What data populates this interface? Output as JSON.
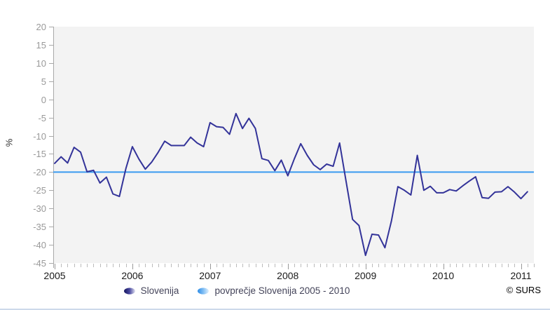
{
  "chart_data": {
    "type": "line",
    "ylabel": "%",
    "ylim": [
      -45,
      20
    ],
    "y_ticks": [
      20,
      15,
      10,
      5,
      0,
      -5,
      -10,
      -15,
      -20,
      -25,
      -30,
      -35,
      -40,
      -45
    ],
    "x_tick_labels": [
      "2005",
      "2006",
      "2007",
      "2008",
      "2009",
      "2010",
      "2011"
    ],
    "x_frequency": "monthly",
    "grid": false,
    "legend_position": "bottom",
    "plot_bg_color": "#f3f3f3",
    "axis_color": "#a8a8a8",
    "tick_label_color": "#999999",
    "year_label_color": "#1a1a1a",
    "series": [
      {
        "name": "Slovenija",
        "color": "#333399",
        "values": [
          -17.6,
          -15.8,
          -17.5,
          -13.2,
          -14.5,
          -19.9,
          -19.5,
          -23.0,
          -21.4,
          -26.0,
          -26.7,
          -19.0,
          -13.0,
          -16.4,
          -19.2,
          -17.2,
          -14.5,
          -11.5,
          -12.7,
          -12.7,
          -12.7,
          -10.4,
          -12.0,
          -13.0,
          -6.4,
          -7.5,
          -7.7,
          -9.6,
          -3.9,
          -8.0,
          -5.2,
          -8.0,
          -16.3,
          -16.8,
          -19.6,
          -16.7,
          -21.0,
          -16.4,
          -12.2,
          -15.4,
          -18.0,
          -19.3,
          -17.8,
          -18.4,
          -12.0,
          -22.5,
          -33.0,
          -34.7,
          -42.9,
          -37.1,
          -37.3,
          -40.8,
          -33.5,
          -24.0,
          -25.0,
          -26.3,
          -15.4,
          -25.0,
          -23.9,
          -25.7,
          -25.7,
          -24.8,
          -25.2,
          -23.8,
          -22.5,
          -21.3,
          -27.0,
          -27.2,
          -25.5,
          -25.4,
          -24.0,
          -25.5,
          -27.3,
          -25.4
        ]
      },
      {
        "name": "povprečje Slovenija 2005 - 2010",
        "type": "hline",
        "color": "#3a9bf0",
        "value": -20
      }
    ]
  },
  "footer": {
    "copyright": "© SURS"
  }
}
